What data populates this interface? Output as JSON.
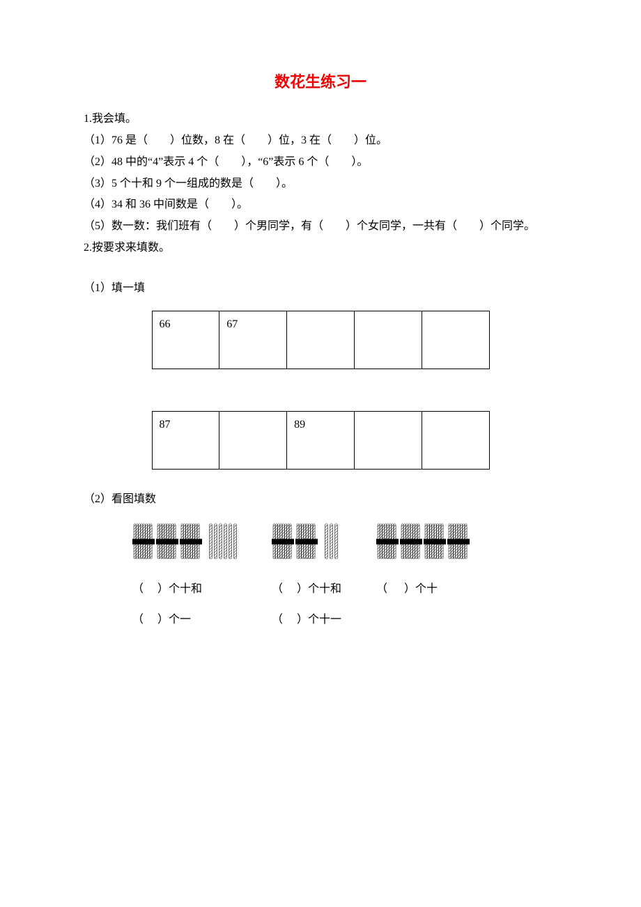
{
  "title": "数花生练习一",
  "title_color": "#f00000",
  "q1": {
    "heading": "1.我会填。",
    "line1": "（1）76 是（　　）位数，8 在（　　）位，3 在（　　）位。",
    "line2": "（2）48 中的“4”表示 4 个（　　），“6”表示 6 个（　　）。",
    "line3": "（3）5 个十和 9 个一组成的数是（　　）。",
    "line4": "（4）34 和 36 中间数是（　　）。",
    "line5": "（5）数一数：我们班有（　　）个男同学，有（　　）个女同学，一共有（　　）个同学。"
  },
  "q2": {
    "heading": "2.按要求来填数。",
    "sub1": "（1）填一填",
    "table1": [
      "66",
      "67",
      "",
      "",
      ""
    ],
    "table2": [
      "87",
      "",
      "89",
      "",
      ""
    ],
    "sub2": "（2）看图填数",
    "groups": [
      {
        "bundles": 3,
        "singles": 6,
        "captions": [
          "（ 　）个十和",
          "（ 　）个一"
        ]
      },
      {
        "bundles": 2,
        "singles": 3,
        "captions": [
          "（ 　）个十和",
          "（ 　）个十一"
        ]
      },
      {
        "bundles": 4,
        "singles": 0,
        "captions": [
          "（ 　 ）个十"
        ]
      }
    ]
  },
  "colors": {
    "text": "#000000",
    "bg": "#ffffff",
    "border": "#000000",
    "title": "#f00000",
    "tie": "#000000",
    "hatch": "#6b6b6b"
  }
}
